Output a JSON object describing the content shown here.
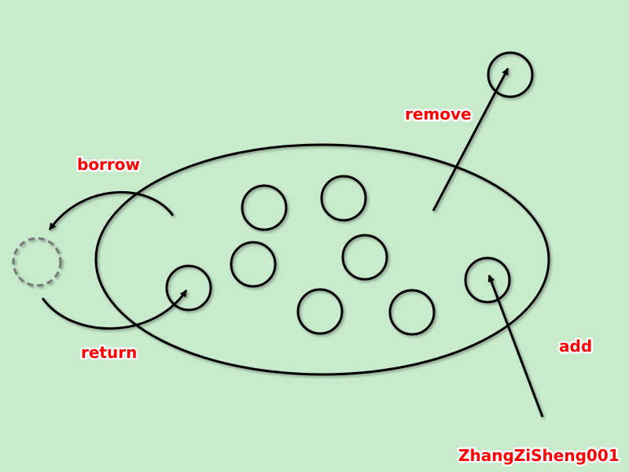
{
  "labels": {
    "borrow": "borrow",
    "return": "return",
    "remove": "remove",
    "add": "add",
    "signature": "ZhangZiSheng001"
  },
  "colors": {
    "background": "#c8ebcc",
    "stroke": "#000000",
    "label_text": "#ff0000",
    "label_outline": "#ffffff",
    "dashed_circle": "#777777"
  }
}
